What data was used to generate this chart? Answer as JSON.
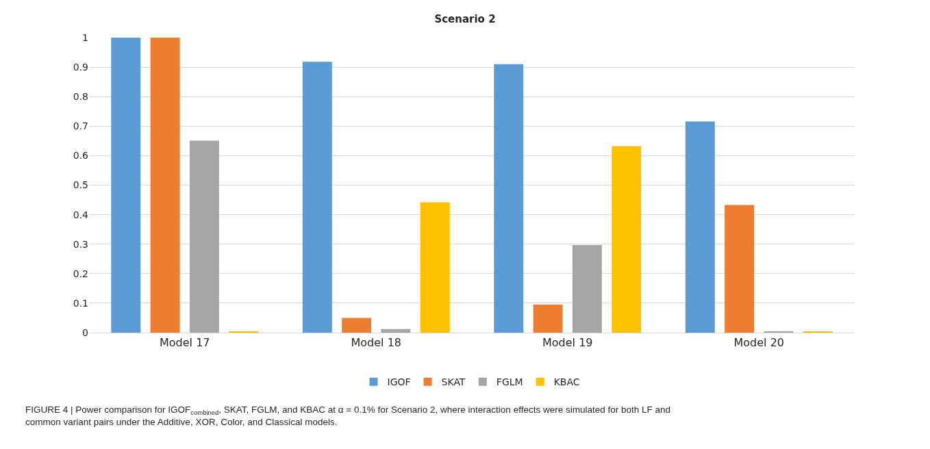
{
  "chart_data": {
    "type": "bar",
    "title": "Scenario 2",
    "categories": [
      "Model 17",
      "Model 18",
      "Model 19",
      "Model 20"
    ],
    "series": [
      {
        "name": "IGOF",
        "color": "#5b9bd5",
        "values": [
          1.0,
          0.918,
          0.91,
          0.716
        ]
      },
      {
        "name": "SKAT",
        "color": "#ed7d31",
        "values": [
          1.0,
          0.05,
          0.095,
          0.433
        ]
      },
      {
        "name": "FGLM",
        "color": "#a5a5a5",
        "values": [
          0.651,
          0.012,
          0.297,
          0.003
        ]
      },
      {
        "name": "KBAC",
        "color": "#ffc000",
        "values": [
          0.004,
          0.442,
          0.632,
          0.004
        ]
      }
    ],
    "ylim": [
      0,
      1
    ],
    "yticks": [
      0,
      0.1,
      0.2,
      0.3,
      0.4,
      0.5,
      0.6,
      0.7,
      0.8,
      0.9,
      1
    ],
    "grid": "y",
    "legend": "bottom",
    "annotations": [
      "FIGURE 4 | Power comparison for IGOF$_{combined}$, SKAT, FGLM, and KBAC at α = 0.1% for Scenario 2, where interaction effects were simulated for both LF and\ncommon variant pairs under the Additive, XOR, Color, and Classical models."
    ]
  }
}
